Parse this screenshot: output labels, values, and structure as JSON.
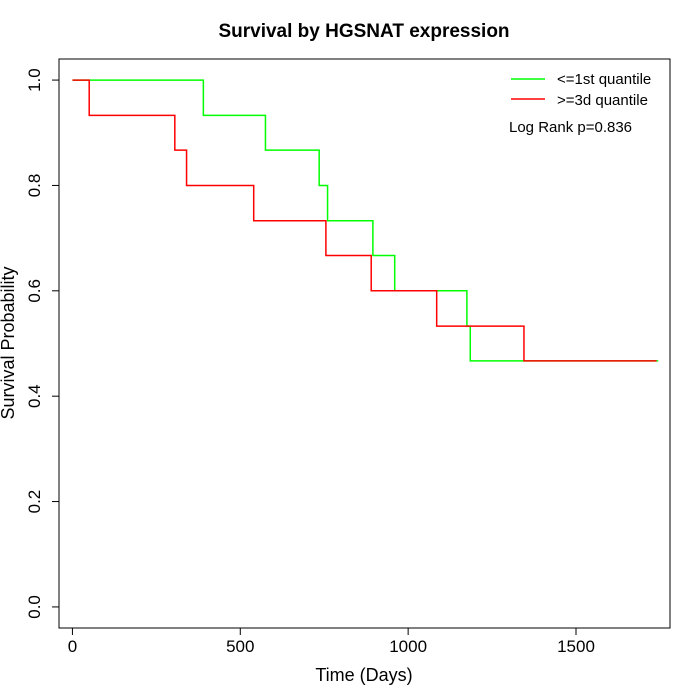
{
  "chart_data": {
    "type": "line",
    "title": "Survival by HGSNAT expression",
    "xlabel": "Time (Days)",
    "ylabel": "Survival Probability",
    "xlim": [
      -40,
      1780
    ],
    "ylim": [
      -0.04,
      1.04
    ],
    "x_ticks": [
      0,
      500,
      1000,
      1500
    ],
    "y_ticks": [
      0.0,
      0.2,
      0.4,
      0.6,
      0.8,
      1.0
    ],
    "x_tick_labels": [
      "0",
      "500",
      "1000",
      "1500"
    ],
    "y_tick_labels": [
      "0.0",
      "0.2",
      "0.4",
      "0.6",
      "0.8",
      "1.0"
    ],
    "grid": false,
    "legend_position": "top-right",
    "annotation": "Log Rank p=0.836",
    "series": [
      {
        "name": "<=1st quantile",
        "color": "#00ff00",
        "step_points": [
          [
            0,
            1.0
          ],
          [
            390,
            1.0
          ],
          [
            390,
            0.933
          ],
          [
            575,
            0.933
          ],
          [
            575,
            0.867
          ],
          [
            735,
            0.867
          ],
          [
            735,
            0.8
          ],
          [
            760,
            0.8
          ],
          [
            760,
            0.733
          ],
          [
            895,
            0.733
          ],
          [
            895,
            0.667
          ],
          [
            960,
            0.667
          ],
          [
            960,
            0.6
          ],
          [
            1175,
            0.6
          ],
          [
            1175,
            0.533
          ],
          [
            1185,
            0.533
          ],
          [
            1185,
            0.467
          ],
          [
            1745,
            0.467
          ]
        ]
      },
      {
        "name": ">=3d quantile",
        "color": "#ff0000",
        "step_points": [
          [
            0,
            1.0
          ],
          [
            50,
            1.0
          ],
          [
            50,
            0.933
          ],
          [
            305,
            0.933
          ],
          [
            305,
            0.867
          ],
          [
            340,
            0.867
          ],
          [
            340,
            0.8
          ],
          [
            540,
            0.8
          ],
          [
            540,
            0.733
          ],
          [
            755,
            0.733
          ],
          [
            755,
            0.667
          ],
          [
            890,
            0.667
          ],
          [
            890,
            0.6
          ],
          [
            1085,
            0.6
          ],
          [
            1085,
            0.533
          ],
          [
            1345,
            0.533
          ],
          [
            1345,
            0.467
          ],
          [
            1740,
            0.467
          ]
        ]
      }
    ]
  }
}
